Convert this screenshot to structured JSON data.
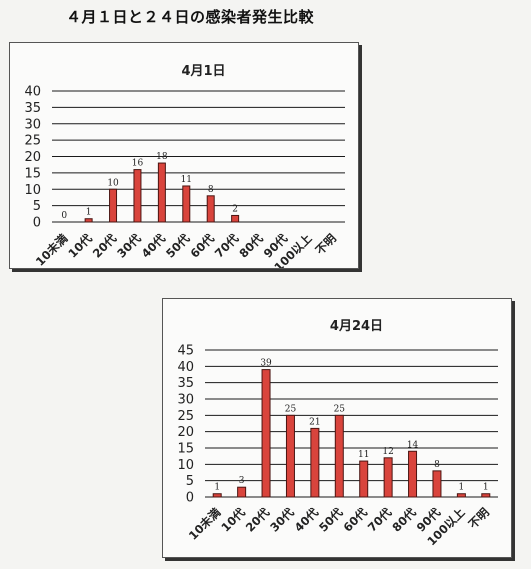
{
  "page": {
    "title": "４月１日と２４日の感染者発生比較"
  },
  "chart_data": [
    {
      "type": "bar",
      "title": "4月1日",
      "categories": [
        "10未満",
        "10代",
        "20代",
        "30代",
        "40代",
        "50代",
        "60代",
        "70代",
        "80代",
        "90代",
        "100以上",
        "不明"
      ],
      "values": [
        0,
        1,
        10,
        16,
        18,
        11,
        8,
        2,
        null,
        null,
        null,
        null
      ],
      "data_labels": [
        "0",
        "1",
        "10",
        "16",
        "18",
        "11",
        "8",
        "2",
        "",
        "",
        "",
        ""
      ],
      "xlabel": "",
      "ylabel": "",
      "ylim": [
        0,
        40
      ],
      "yticks": [
        0,
        5,
        10,
        15,
        20,
        25,
        30,
        35,
        40
      ],
      "grid": true,
      "legend": "none",
      "colors": {
        "bar": "#d9443c",
        "bar_edge": "#4a1512",
        "grid": "#1a1a1a"
      }
    },
    {
      "type": "bar",
      "title": "4月24日",
      "categories": [
        "10未満",
        "10代",
        "20代",
        "30代",
        "40代",
        "50代",
        "60代",
        "70代",
        "80代",
        "90代",
        "100以上",
        "不明"
      ],
      "values": [
        1,
        3,
        39,
        25,
        21,
        25,
        11,
        12,
        14,
        8,
        1,
        1
      ],
      "data_labels": [
        "1",
        "3",
        "39",
        "25",
        "21",
        "25",
        "11",
        "12",
        "14",
        "8",
        "1",
        "1"
      ],
      "xlabel": "",
      "ylabel": "",
      "ylim": [
        0,
        45
      ],
      "yticks": [
        0,
        5,
        10,
        15,
        20,
        25,
        30,
        35,
        40,
        45
      ],
      "grid": true,
      "legend": "none",
      "colors": {
        "bar": "#d9443c",
        "bar_edge": "#4a1512",
        "grid": "#1a1a1a"
      }
    }
  ]
}
